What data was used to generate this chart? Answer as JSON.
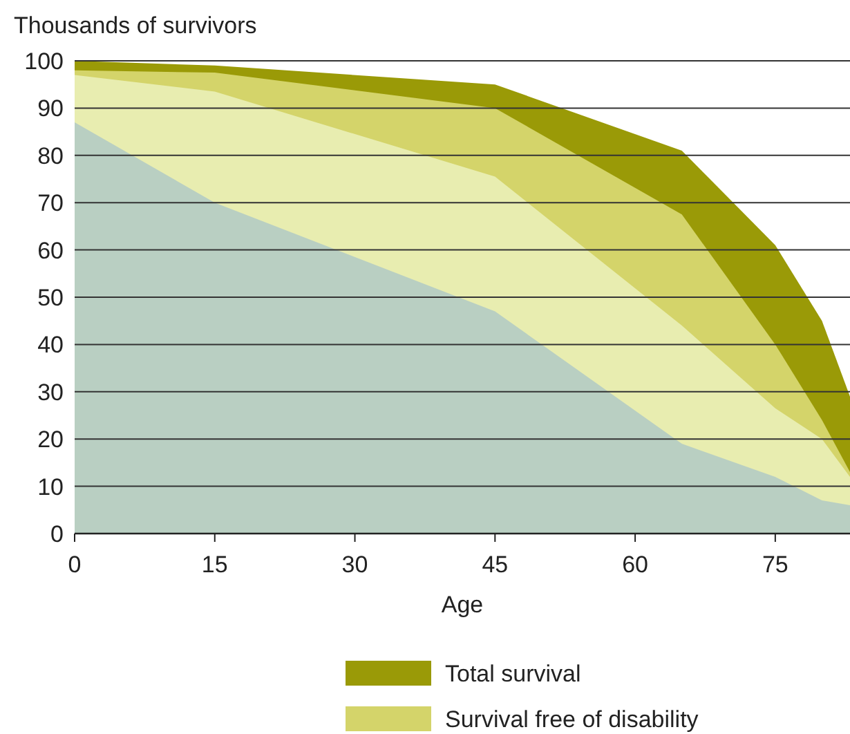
{
  "chart_data": {
    "type": "area",
    "ylabel": "Thousands of survivors",
    "xlabel": "Age",
    "x": [
      0,
      15,
      45,
      65,
      75,
      80,
      83
    ],
    "series": [
      {
        "name": "Total survival",
        "color": "#9a9a07",
        "values": [
          100,
          99,
          95,
          81,
          61,
          45,
          29
        ]
      },
      {
        "name": "Survival free of disability",
        "color": "#d4d46a",
        "values": [
          98,
          97.5,
          90,
          67.5,
          40,
          24,
          13
        ]
      },
      {
        "color": "#e8edb0",
        "values": [
          97,
          93.5,
          75.5,
          44,
          26.5,
          20,
          12
        ]
      },
      {
        "color": "#b9cfc2",
        "values": [
          87,
          70,
          47,
          19,
          12,
          7,
          6
        ]
      }
    ],
    "xlim": [
      0,
      83
    ],
    "xticks": [
      0,
      15,
      30,
      45,
      60,
      75
    ],
    "ylim": [
      0,
      100
    ],
    "yticks": [
      0,
      10,
      20,
      30,
      40,
      50,
      60,
      70,
      80,
      90,
      100
    ],
    "grid": "y",
    "legend": "bottom"
  }
}
